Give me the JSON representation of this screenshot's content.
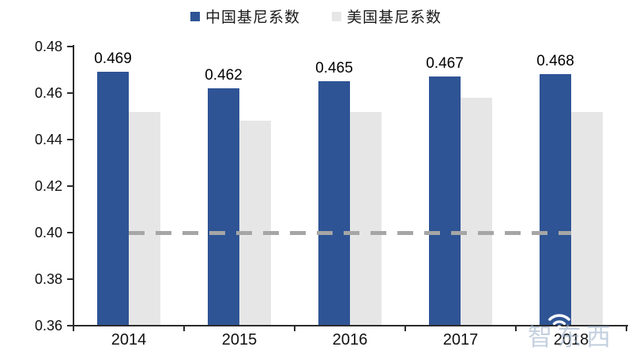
{
  "legend": {
    "items": [
      {
        "label": "中国基尼系数",
        "color": "#2e5495"
      },
      {
        "label": "美国基尼系数",
        "color": "#e7e6e6"
      }
    ]
  },
  "chart_data": {
    "type": "bar",
    "categories": [
      "2014",
      "2015",
      "2016",
      "2017",
      "2018"
    ],
    "series": [
      {
        "name": "中国基尼系数",
        "color": "#2e5495",
        "values": [
          0.469,
          0.462,
          0.465,
          0.467,
          0.468
        ],
        "data_labels": [
          "0.469",
          "0.462",
          "0.465",
          "0.467",
          "0.468"
        ]
      },
      {
        "name": "美国基尼系数",
        "color": "#e7e6e6",
        "values": [
          0.452,
          0.448,
          0.452,
          0.458,
          0.452
        ]
      }
    ],
    "ylim": [
      0.36,
      0.48
    ],
    "ytick_labels": [
      "0.48",
      "0.46",
      "0.44",
      "0.42",
      "0.40",
      "0.38",
      "0.36"
    ],
    "reference_line": {
      "value": 0.4,
      "style": "dashed",
      "color": "#a6a6a6"
    },
    "grid": false,
    "legend_position": "top",
    "axis_color": "#2b2b2b"
  },
  "watermark": {
    "text": "智东西",
    "icon": "wifi-icon",
    "color": "#9fb4cd"
  }
}
